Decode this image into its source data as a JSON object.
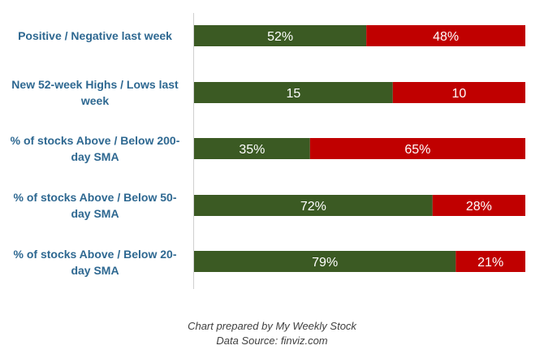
{
  "chart_data": {
    "type": "bar",
    "orientation": "horizontal",
    "stacked": true,
    "percent_scale": true,
    "categories": [
      "Positive / Negative last week",
      "New 52-week Highs / Lows last week",
      "% of stocks Above / Below 200-day SMA",
      "% of stocks Above / Below 50-day SMA",
      "% of stocks Above / Below 20-day SMA"
    ],
    "series": [
      {
        "values": [
          52,
          15,
          35,
          72,
          79
        ],
        "labels": [
          "52%",
          "15",
          "35%",
          "72%",
          "79%"
        ],
        "color": "#3b5a23"
      },
      {
        "values": [
          48,
          10,
          65,
          28,
          21
        ],
        "labels": [
          "48%",
          "10",
          "65%",
          "28%",
          "21%"
        ],
        "color": "#c00000"
      }
    ],
    "title": "",
    "xlabel": "",
    "ylabel": "",
    "grid": false,
    "legend": "none"
  },
  "footer": {
    "line1": "Chart prepared by My Weekly Stock",
    "line2": "Data Source: finviz.com"
  }
}
